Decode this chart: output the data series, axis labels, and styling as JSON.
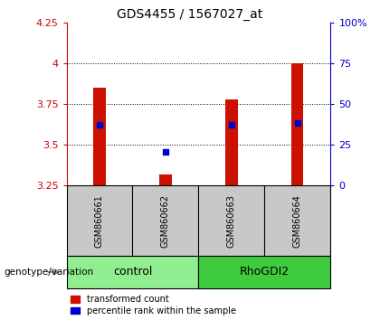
{
  "title": "GDS4455 / 1567027_at",
  "samples": [
    "GSM860661",
    "GSM860662",
    "GSM860663",
    "GSM860664"
  ],
  "groups": [
    {
      "name": "control",
      "indices": [
        0,
        1
      ],
      "color": "#90EE90"
    },
    {
      "name": "RhoGDI2",
      "indices": [
        2,
        3
      ],
      "color": "#3ECC3E"
    }
  ],
  "bar_bottoms": [
    3.25,
    3.25,
    3.25,
    3.25
  ],
  "bar_tops": [
    3.85,
    3.32,
    3.78,
    4.0
  ],
  "blue_marks": [
    3.625,
    3.455,
    3.625,
    3.635
  ],
  "ylim_left": [
    3.25,
    4.25
  ],
  "ylim_right": [
    0,
    100
  ],
  "yticks_left": [
    3.25,
    3.5,
    3.75,
    4.0,
    4.25
  ],
  "yticks_right": [
    0,
    25,
    50,
    75,
    100
  ],
  "ytick_labels_left": [
    "3.25",
    "3.5",
    "3.75",
    "4",
    "4.25"
  ],
  "ytick_labels_right": [
    "0",
    "25",
    "50",
    "75",
    "100%"
  ],
  "left_axis_color": "#CC0000",
  "right_axis_color": "#0000CC",
  "bar_color": "#CC1100",
  "blue_color": "#0000CC",
  "bar_width": 0.18,
  "plot_bg": "#FFFFFF",
  "sample_bg": "#C8C8C8",
  "legend_red_label": "transformed count",
  "legend_blue_label": "percentile rank within the sample",
  "genotype_label": "genotype/variation"
}
